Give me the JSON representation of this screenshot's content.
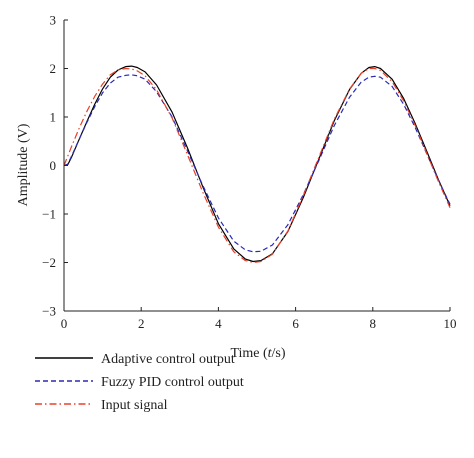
{
  "chart_data": {
    "type": "line",
    "title": "",
    "xlabel": "Time (t/s)",
    "xlabel_parts": {
      "before": "Time (",
      "italic": "t",
      "after": "/s)"
    },
    "ylabel": "Amplitude (V)",
    "xlim": [
      0,
      10
    ],
    "ylim": [
      -3,
      3
    ],
    "xticks": [
      0,
      2,
      4,
      6,
      8,
      10
    ],
    "yticks": [
      -3,
      -2,
      -1,
      0,
      1,
      2,
      3
    ],
    "grid": false,
    "legend_position": "bottom",
    "series": [
      {
        "name": "Adaptive control output",
        "color": "#000000",
        "style": "solid",
        "x": [
          0,
          0.1,
          0.2,
          0.4,
          0.6,
          0.8,
          1.0,
          1.2,
          1.4,
          1.6,
          1.75,
          1.9,
          2.1,
          2.4,
          2.8,
          3.2,
          3.6,
          4.0,
          4.4,
          4.7,
          4.9,
          5.1,
          5.4,
          5.8,
          6.2,
          6.6,
          7.0,
          7.4,
          7.7,
          7.9,
          8.05,
          8.2,
          8.5,
          8.8,
          9.1,
          9.4,
          9.7,
          10.0
        ],
        "values": [
          0,
          0.02,
          0.18,
          0.55,
          0.92,
          1.27,
          1.58,
          1.82,
          1.97,
          2.04,
          2.05,
          2.02,
          1.93,
          1.66,
          1.1,
          0.36,
          -0.45,
          -1.2,
          -1.72,
          -1.93,
          -1.98,
          -1.96,
          -1.82,
          -1.36,
          -0.66,
          0.13,
          0.92,
          1.57,
          1.9,
          2.02,
          2.04,
          2.0,
          1.78,
          1.38,
          0.86,
          0.29,
          -0.29,
          -0.83
        ]
      },
      {
        "name": "Fuzzy PID control output",
        "color": "#2a2ab8",
        "style": "dashed",
        "x": [
          0,
          0.1,
          0.2,
          0.4,
          0.6,
          0.8,
          1.0,
          1.2,
          1.4,
          1.6,
          1.75,
          1.9,
          2.1,
          2.4,
          2.8,
          3.2,
          3.6,
          4.0,
          4.4,
          4.7,
          4.9,
          5.1,
          5.4,
          5.8,
          6.2,
          6.6,
          7.0,
          7.4,
          7.7,
          7.9,
          8.05,
          8.2,
          8.5,
          8.8,
          9.1,
          9.4,
          9.7,
          10.0
        ],
        "values": [
          0,
          0.03,
          0.2,
          0.55,
          0.9,
          1.22,
          1.5,
          1.7,
          1.82,
          1.86,
          1.87,
          1.85,
          1.78,
          1.52,
          1.0,
          0.3,
          -0.42,
          -1.08,
          -1.56,
          -1.74,
          -1.78,
          -1.77,
          -1.64,
          -1.22,
          -0.6,
          0.1,
          0.82,
          1.41,
          1.72,
          1.82,
          1.84,
          1.82,
          1.63,
          1.26,
          0.78,
          0.24,
          -0.3,
          -0.8
        ]
      },
      {
        "name": "Input signal",
        "color": "#e8402a",
        "style": "dashdot",
        "x": [
          0,
          0.1,
          0.2,
          0.4,
          0.6,
          0.8,
          1.0,
          1.2,
          1.4,
          1.6,
          1.75,
          1.9,
          2.1,
          2.4,
          2.8,
          3.2,
          3.6,
          4.0,
          4.4,
          4.7,
          4.9,
          5.1,
          5.4,
          5.8,
          6.2,
          6.6,
          7.0,
          7.4,
          7.7,
          7.9,
          8.05,
          8.2,
          8.5,
          8.8,
          9.1,
          9.4,
          9.7,
          10.0
        ],
        "values": [
          0,
          0.2,
          0.4,
          0.78,
          1.13,
          1.43,
          1.68,
          1.87,
          1.97,
          2.0,
          1.99,
          1.95,
          1.85,
          1.56,
          0.98,
          0.22,
          -0.56,
          -1.27,
          -1.78,
          -1.96,
          -2.0,
          -1.98,
          -1.83,
          -1.35,
          -0.62,
          0.17,
          0.95,
          1.58,
          1.9,
          2.0,
          2.0,
          1.96,
          1.73,
          1.33,
          0.82,
          0.25,
          -0.33,
          -0.87
        ]
      }
    ]
  }
}
